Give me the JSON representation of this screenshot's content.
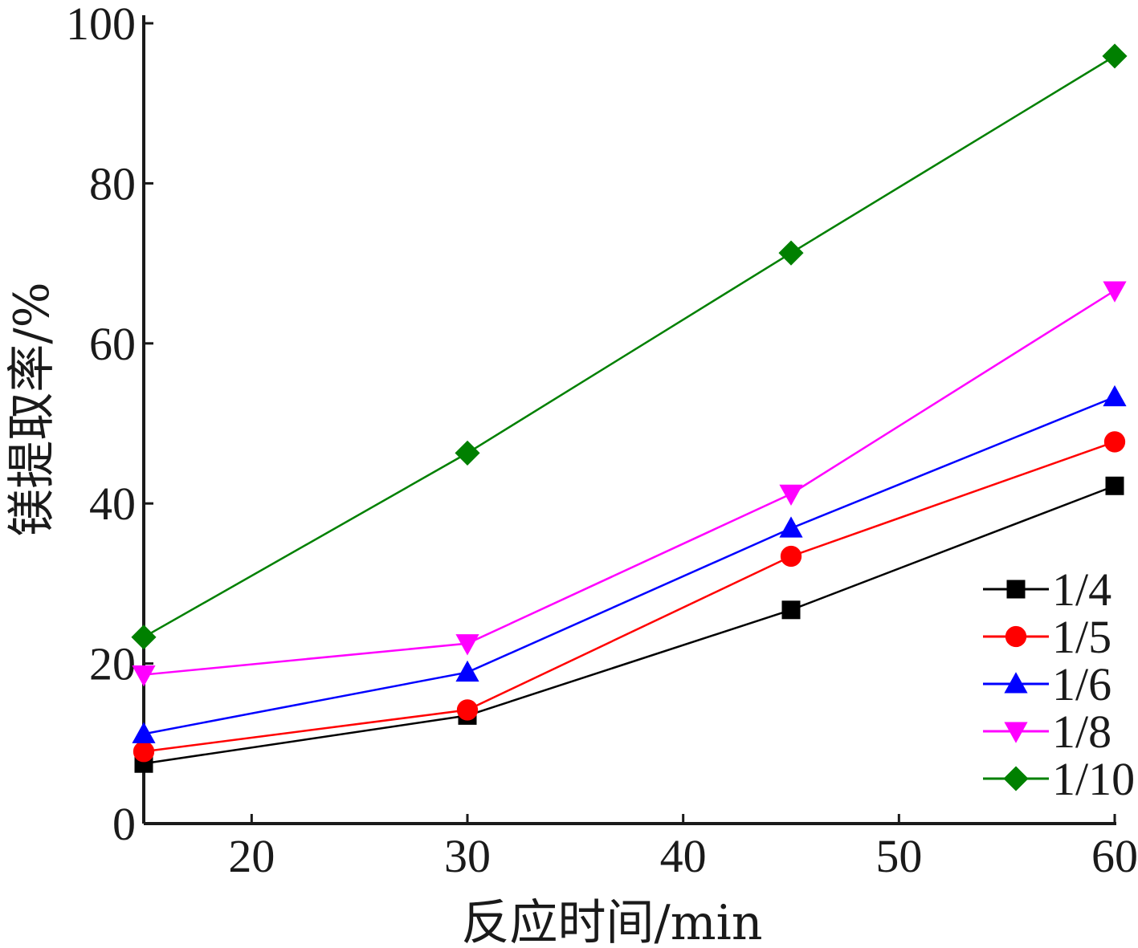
{
  "chart_data": {
    "type": "line",
    "xlabel": "反应时间/min",
    "ylabel": "镁提取率/%",
    "xlim": [
      15,
      60
    ],
    "ylim": [
      0,
      100
    ],
    "x_ticks": [
      20,
      30,
      40,
      50,
      60
    ],
    "y_ticks": [
      0,
      20,
      40,
      60,
      80,
      100
    ],
    "x": [
      15,
      30,
      45,
      60
    ],
    "grid": false,
    "legend_position": "lower-right",
    "series": [
      {
        "name": "1/4",
        "color": "#000000",
        "marker": "square",
        "values": [
          7.5,
          13.5,
          26.7,
          42.2
        ]
      },
      {
        "name": "1/5",
        "color": "#ff0000",
        "marker": "circle",
        "values": [
          9.0,
          14.2,
          33.4,
          47.7
        ]
      },
      {
        "name": "1/6",
        "color": "#0000ff",
        "marker": "triangle-up",
        "values": [
          11.2,
          18.9,
          36.9,
          53.3
        ]
      },
      {
        "name": "1/8",
        "color": "#ff00ff",
        "marker": "triangle-down",
        "values": [
          18.6,
          22.5,
          41.2,
          66.6
        ]
      },
      {
        "name": "1/10",
        "color": "#008000",
        "marker": "diamond",
        "values": [
          23.3,
          46.3,
          71.3,
          95.9
        ]
      }
    ]
  }
}
